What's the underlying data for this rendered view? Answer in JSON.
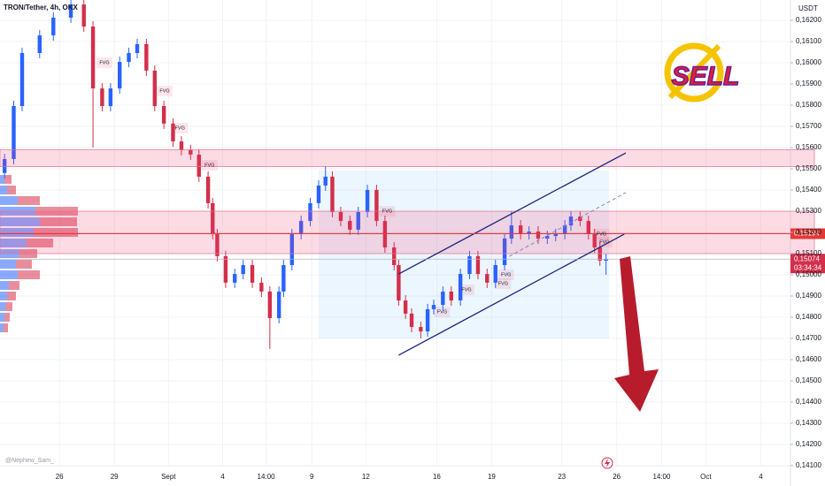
{
  "chart_data": {
    "type": "candlestick",
    "title": "TRON/Tether, 4h, OKX",
    "currency": "USDT",
    "watermark": "@Nephew_Sam_",
    "logo_text": "SELL",
    "x": [
      -72,
      -60,
      -49,
      -26,
      -8,
      15,
      32,
      44,
      56,
      67,
      79,
      91,
      102,
      114,
      125,
      137,
      149,
      160,
      172,
      183,
      195,
      201,
      207,
      218,
      230,
      241,
      253,
      265,
      276,
      288,
      294,
      305,
      317,
      329,
      340,
      349,
      358,
      369,
      381,
      392,
      404,
      416,
      427,
      439,
      445,
      454,
      462,
      474,
      483,
      491,
      503,
      514,
      526,
      538,
      549,
      561,
      572,
      584,
      593,
      605,
      616,
      628,
      640,
      651,
      663,
      671,
      683,
      694,
      702,
      709,
      717
    ],
    "open": [
      0.1548,
      0.15546,
      0.15796,
      0.16046,
      0.16129,
      0.16213,
      0.16275,
      0.16171,
      0.15879,
      0.15796,
      0.15879,
      0.16004,
      0.16046,
      0.16088,
      0.15963,
      0.15796,
      0.15713,
      0.15629,
      0.15588,
      0.15567,
      0.15463,
      0.15338,
      0.15192,
      0.15088,
      0.14963,
      0.15004,
      0.15046,
      0.14963,
      0.14921,
      0.14796,
      0.14921,
      0.15046,
      0.15192,
      0.15254,
      0.15338,
      0.15421,
      0.15463,
      0.15296,
      0.15254,
      0.15213,
      0.15296,
      0.154,
      0.15254,
      0.15129,
      0.15046,
      0.14879,
      0.14817,
      0.14754,
      0.14733,
      0.14838,
      0.14858,
      0.14921,
      0.14879,
      0.15004,
      0.15088,
      0.15004,
      0.14963,
      0.15046,
      0.15171,
      0.15233,
      0.15192,
      0.15204,
      0.15171,
      0.15183,
      0.15192,
      0.15233,
      0.15275,
      0.15254,
      0.15192,
      0.15129,
      0.15067
    ],
    "high": [
      0.15571,
      0.15821,
      0.16071,
      0.16154,
      0.16238,
      0.163,
      0.163,
      0.16196,
      0.15904,
      0.15904,
      0.16029,
      0.16071,
      0.16113,
      0.16113,
      0.15988,
      0.15821,
      0.15738,
      0.15654,
      0.15613,
      0.15592,
      0.15488,
      0.15363,
      0.15217,
      0.15113,
      0.15029,
      0.15071,
      0.15071,
      0.14988,
      0.14946,
      0.14946,
      0.15071,
      0.15217,
      0.15279,
      0.15363,
      0.15446,
      0.15513,
      0.15488,
      0.15321,
      0.15279,
      0.15321,
      0.15425,
      0.15425,
      0.15279,
      0.15154,
      0.15071,
      0.14904,
      0.14842,
      0.14779,
      0.14863,
      0.14883,
      0.14946,
      0.14946,
      0.15029,
      0.15113,
      0.15113,
      0.15029,
      0.15071,
      0.15196,
      0.153,
      0.15258,
      0.15229,
      0.15229,
      0.15208,
      0.15217,
      0.15258,
      0.153,
      0.153,
      0.15279,
      0.15217,
      0.15154,
      0.15099
    ],
    "low": [
      0.15455,
      0.15521,
      0.15771,
      0.16021,
      0.16104,
      0.16188,
      0.16146,
      0.156,
      0.15771,
      0.15771,
      0.15854,
      0.15979,
      0.16021,
      0.15938,
      0.15771,
      0.15688,
      0.15604,
      0.15563,
      0.15542,
      0.15438,
      0.15313,
      0.15167,
      0.15063,
      0.14938,
      0.14938,
      0.14979,
      0.14938,
      0.14896,
      0.1465,
      0.14771,
      0.14896,
      0.15021,
      0.15167,
      0.15229,
      0.15313,
      0.15396,
      0.15271,
      0.15229,
      0.15188,
      0.15188,
      0.15271,
      0.15229,
      0.15104,
      0.15021,
      0.14854,
      0.14792,
      0.14729,
      0.147,
      0.14708,
      0.14813,
      0.14833,
      0.14854,
      0.14854,
      0.14979,
      0.14979,
      0.14938,
      0.14938,
      0.15021,
      0.15146,
      0.15167,
      0.15167,
      0.15146,
      0.15146,
      0.15158,
      0.15167,
      0.15208,
      0.15229,
      0.15167,
      0.15104,
      0.15042,
      0.15
    ],
    "close": [
      0.15546,
      0.15796,
      0.16046,
      0.16129,
      0.16213,
      0.16275,
      0.16171,
      0.15879,
      0.15796,
      0.15879,
      0.16004,
      0.16046,
      0.16088,
      0.15963,
      0.15796,
      0.15713,
      0.15629,
      0.15588,
      0.15567,
      0.15463,
      0.15338,
      0.15192,
      0.15088,
      0.14963,
      0.15004,
      0.15046,
      0.14963,
      0.14921,
      0.14796,
      0.14921,
      0.15046,
      0.15192,
      0.15254,
      0.15338,
      0.15421,
      0.15463,
      0.15296,
      0.15254,
      0.15213,
      0.15296,
      0.154,
      0.15254,
      0.15129,
      0.15046,
      0.14879,
      0.14817,
      0.14754,
      0.14733,
      0.14838,
      0.14858,
      0.14921,
      0.14879,
      0.15004,
      0.15088,
      0.15004,
      0.14963,
      0.15046,
      0.15171,
      0.15233,
      0.15192,
      0.15204,
      0.15171,
      0.15183,
      0.15192,
      0.15233,
      0.15275,
      0.15254,
      0.15192,
      0.15129,
      0.15067,
      0.15074
    ],
    "up_color": "#2962ff",
    "down_color": "#d32f4b",
    "xlim": [
      -78,
      959
    ],
    "ylim": [
      0.141,
      0.16296
    ],
    "xticks": [
      {
        "value": 0,
        "label": "26"
      },
      {
        "value": 72,
        "label": "29"
      },
      {
        "value": 143,
        "label": "Sept"
      },
      {
        "value": 214,
        "label": "4"
      },
      {
        "value": 271,
        "label": "14:00"
      },
      {
        "value": 331,
        "label": "9"
      },
      {
        "value": 402,
        "label": "12"
      },
      {
        "value": 495,
        "label": "16"
      },
      {
        "value": 567,
        "label": "19"
      },
      {
        "value": 659,
        "label": "23"
      },
      {
        "value": 731,
        "label": "26"
      },
      {
        "value": 790,
        "label": "14:00"
      },
      {
        "value": 848,
        "label": "Oct"
      },
      {
        "value": 920,
        "label": "4"
      }
    ],
    "yticks": [
      {
        "value": 0.141,
        "label": "0,14100"
      },
      {
        "value": 0.142,
        "label": "0,14200"
      },
      {
        "value": 0.143,
        "label": "0,14300"
      },
      {
        "value": 0.144,
        "label": "0,14400"
      },
      {
        "value": 0.145,
        "label": "0,14500"
      },
      {
        "value": 0.146,
        "label": "0,14600"
      },
      {
        "value": 0.147,
        "label": "0,14700"
      },
      {
        "value": 0.148,
        "label": "0,14800"
      },
      {
        "value": 0.149,
        "label": "0,14900"
      },
      {
        "value": 0.15,
        "label": "0,15000"
      },
      {
        "value": 0.151,
        "label": "0,15100"
      },
      {
        "value": 0.152,
        "label": "0,15200"
      },
      {
        "value": 0.153,
        "label": "0,15300"
      },
      {
        "value": 0.154,
        "label": "0,15400"
      },
      {
        "value": 0.155,
        "label": "0,15500"
      },
      {
        "value": 0.156,
        "label": "0,15600"
      },
      {
        "value": 0.157,
        "label": "0,15700"
      },
      {
        "value": 0.158,
        "label": "0,15800"
      },
      {
        "value": 0.159,
        "label": "0,15900"
      },
      {
        "value": 0.16,
        "label": "0,16000"
      },
      {
        "value": 0.161,
        "label": "0,16100"
      },
      {
        "value": 0.162,
        "label": "0,16200"
      }
    ],
    "last_price": {
      "value": 0.15074,
      "label": "0,15074"
    },
    "countdown": "03:34:34",
    "level_line": {
      "value": 0.15194,
      "label": "0,15194"
    },
    "zones": [
      {
        "low": 0.1551,
        "high": 0.1559
      },
      {
        "low": 0.151,
        "high": 0.153
      }
    ],
    "range_box": {
      "x0": 340,
      "x1": 721,
      "low": 0.147,
      "high": 0.15492
    },
    "channel": [
      {
        "x0": 445,
        "y0": 0.14621,
        "x1": 741,
        "y1": 0.15192
      },
      {
        "x0": 445,
        "y0": 0.15004,
        "x1": 743,
        "y1": 0.15575
      },
      {
        "x0": 590,
        "y0": 0.15087,
        "x1": 743,
        "y1": 0.15388
      }
    ],
    "fvg": [
      {
        "x": 59,
        "price": 0.16,
        "label": "FVG"
      },
      {
        "x": 138,
        "price": 0.15867,
        "label": "FVG"
      },
      {
        "x": 158,
        "price": 0.15692,
        "label": "FVG"
      },
      {
        "x": 197,
        "price": 0.15517,
        "label": "FVG"
      },
      {
        "x": 430,
        "price": 0.153,
        "label": "FVG"
      },
      {
        "x": 502,
        "price": 0.14825,
        "label": "FVG"
      },
      {
        "x": 534,
        "price": 0.14929,
        "label": "FVG"
      },
      {
        "x": 586,
        "price": 0.15,
        "label": "FVG"
      },
      {
        "x": 582,
        "price": 0.14958,
        "label": "FVG"
      },
      {
        "x": 711,
        "price": 0.15192,
        "label": "FVG"
      },
      {
        "x": 715,
        "price": 0.15154,
        "label": "FVG"
      }
    ],
    "volume_profile": {
      "prices": [
        0.1545,
        0.154,
        0.1535,
        0.153,
        0.1525,
        0.152,
        0.1515,
        0.151,
        0.1505,
        0.15,
        0.1495,
        0.149,
        0.1485,
        0.148,
        0.1475
      ],
      "up": [
        5,
        8,
        20,
        40,
        45,
        38,
        30,
        22,
        18,
        20,
        10,
        8,
        6,
        5,
        4
      ],
      "down": [
        8,
        10,
        25,
        48,
        42,
        50,
        30,
        20,
        18,
        25,
        12,
        10,
        8,
        6,
        5
      ]
    }
  }
}
